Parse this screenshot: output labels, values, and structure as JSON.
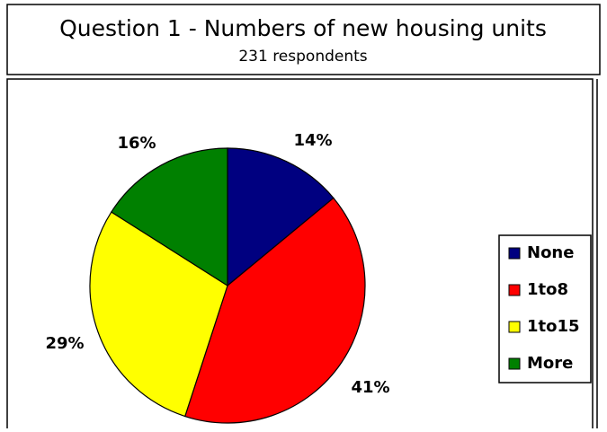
{
  "chart_data": {
    "type": "pie",
    "title": "Question 1 - Numbers of new housing units",
    "subtitle": "231 respondents",
    "categories": [
      "None",
      "1to8",
      "1to15",
      "More"
    ],
    "values": [
      14,
      41,
      29,
      16
    ],
    "value_labels": [
      "14%",
      "41%",
      "29%",
      "16%"
    ],
    "colors": [
      "#000080",
      "#ff0000",
      "#ffff00",
      "#008000"
    ],
    "legend": "right"
  }
}
